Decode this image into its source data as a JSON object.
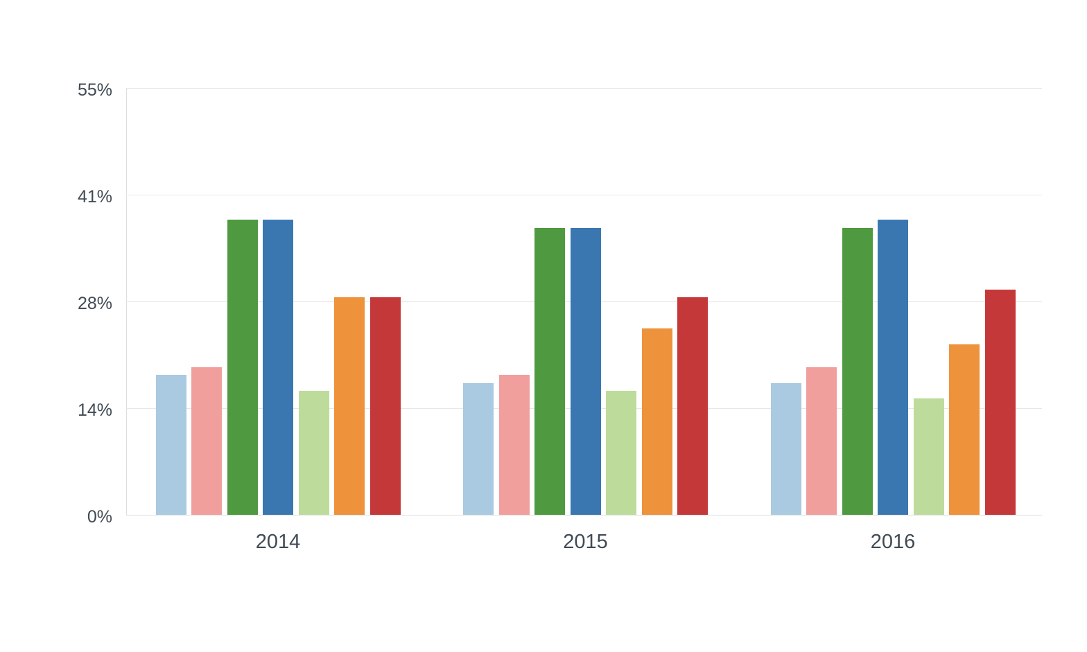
{
  "chart_data": {
    "type": "bar",
    "title": "",
    "xlabel": "",
    "ylabel": "",
    "categories": [
      "2014",
      "2015",
      "2016"
    ],
    "series": [
      {
        "name": "light-blue",
        "color": "#a9cae0",
        "values": [
          18,
          17,
          17
        ]
      },
      {
        "name": "pink",
        "color": "#f09f9d",
        "values": [
          19,
          18,
          19
        ]
      },
      {
        "name": "green",
        "color": "#4f9a41",
        "values": [
          38,
          37,
          37
        ]
      },
      {
        "name": "blue",
        "color": "#3a77b1",
        "values": [
          38,
          37,
          38
        ]
      },
      {
        "name": "light-green",
        "color": "#bddc9b",
        "values": [
          16,
          16,
          15
        ]
      },
      {
        "name": "orange",
        "color": "#ee923c",
        "values": [
          28,
          24,
          22
        ]
      },
      {
        "name": "red",
        "color": "#c4383a",
        "values": [
          28,
          28,
          29
        ]
      }
    ],
    "ylim": [
      0,
      55
    ],
    "y_tick_values": [
      0,
      13.75,
      27.5,
      41.25,
      55
    ],
    "y_tick_labels": [
      "0%",
      "14%",
      "28%",
      "41%",
      "55%"
    ],
    "grid": "horizontal",
    "legend_position": "none"
  },
  "colors": {
    "background": "#ffffff",
    "text": "#404a54",
    "gridline": "#e7e7e7",
    "axis_line": "#dedede"
  }
}
